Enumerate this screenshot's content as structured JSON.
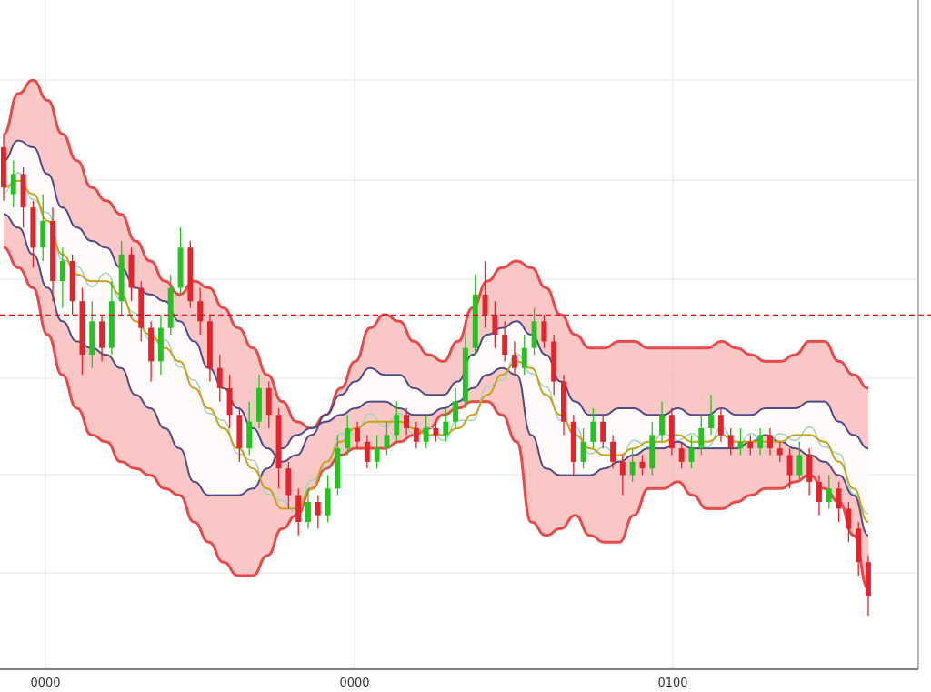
{
  "colors": {
    "background": "#ffffff",
    "grid": "#e4e4e4",
    "axis": "#555555",
    "up_candle": "#22c51e",
    "down_candle": "#e8222a",
    "band_outline": "#e84a4a",
    "band_fill": "#f8b4b4",
    "inner_band": "#4e4c86",
    "ma_line": "#c9a21a",
    "ma_line_light": "#9ed4c0",
    "reference_line": "#e01010"
  },
  "chart_data": {
    "type": "candlestick",
    "title": "",
    "xlabel": "",
    "ylabel": "",
    "x_tick_labels": [
      "0000",
      "0000",
      "0100"
    ],
    "ylim": [
      0,
      100
    ],
    "grid": true,
    "legend": "none",
    "reference_line": {
      "value": 52.9,
      "style": "dashed",
      "color": "#e01010"
    },
    "candles": [
      {
        "o": 78,
        "c": 72,
        "h": 80,
        "l": 70
      },
      {
        "o": 71,
        "c": 74,
        "h": 76,
        "l": 69
      },
      {
        "o": 74,
        "c": 69,
        "h": 75,
        "l": 66
      },
      {
        "o": 69,
        "c": 63,
        "h": 70,
        "l": 60
      },
      {
        "o": 63,
        "c": 67,
        "h": 71,
        "l": 61
      },
      {
        "o": 67,
        "c": 58,
        "h": 69,
        "l": 55
      },
      {
        "o": 58,
        "c": 61,
        "h": 63,
        "l": 54
      },
      {
        "o": 61,
        "c": 55,
        "h": 62,
        "l": 53
      },
      {
        "o": 55,
        "c": 47,
        "h": 57,
        "l": 44
      },
      {
        "o": 47,
        "c": 52,
        "h": 55,
        "l": 45
      },
      {
        "o": 52,
        "c": 48,
        "h": 53,
        "l": 46
      },
      {
        "o": 48,
        "c": 55,
        "h": 58,
        "l": 47
      },
      {
        "o": 55,
        "c": 62,
        "h": 64,
        "l": 53
      },
      {
        "o": 62,
        "c": 57,
        "h": 63,
        "l": 55
      },
      {
        "o": 57,
        "c": 51,
        "h": 58,
        "l": 49
      },
      {
        "o": 51,
        "c": 46,
        "h": 52,
        "l": 43
      },
      {
        "o": 46,
        "c": 51,
        "h": 53,
        "l": 44
      },
      {
        "o": 51,
        "c": 57,
        "h": 59,
        "l": 50
      },
      {
        "o": 57,
        "c": 63,
        "h": 66,
        "l": 56
      },
      {
        "o": 63,
        "c": 55,
        "h": 64,
        "l": 54
      },
      {
        "o": 55,
        "c": 52,
        "h": 57,
        "l": 50
      },
      {
        "o": 52,
        "c": 45,
        "h": 53,
        "l": 43
      },
      {
        "o": 45,
        "c": 42,
        "h": 47,
        "l": 40
      },
      {
        "o": 42,
        "c": 38,
        "h": 44,
        "l": 36
      },
      {
        "o": 38,
        "c": 33,
        "h": 39,
        "l": 31
      },
      {
        "o": 33,
        "c": 37,
        "h": 40,
        "l": 32
      },
      {
        "o": 37,
        "c": 42,
        "h": 44,
        "l": 36
      },
      {
        "o": 42,
        "c": 38,
        "h": 43,
        "l": 36
      },
      {
        "o": 38,
        "c": 30,
        "h": 39,
        "l": 27
      },
      {
        "o": 30,
        "c": 26,
        "h": 31,
        "l": 24
      },
      {
        "o": 26,
        "c": 22,
        "h": 27,
        "l": 20
      },
      {
        "o": 22,
        "c": 25,
        "h": 27,
        "l": 21
      },
      {
        "o": 25,
        "c": 23,
        "h": 26,
        "l": 21
      },
      {
        "o": 23,
        "c": 27,
        "h": 29,
        "l": 22
      },
      {
        "o": 27,
        "c": 33,
        "h": 35,
        "l": 26
      },
      {
        "o": 33,
        "c": 36,
        "h": 38,
        "l": 32
      },
      {
        "o": 36,
        "c": 34,
        "h": 37,
        "l": 33
      },
      {
        "o": 34,
        "c": 31,
        "h": 35,
        "l": 30
      },
      {
        "o": 31,
        "c": 33,
        "h": 35,
        "l": 30
      },
      {
        "o": 33,
        "c": 35,
        "h": 37,
        "l": 32
      },
      {
        "o": 35,
        "c": 38,
        "h": 40,
        "l": 34
      },
      {
        "o": 38,
        "c": 36,
        "h": 39,
        "l": 35
      },
      {
        "o": 36,
        "c": 34,
        "h": 37,
        "l": 33
      },
      {
        "o": 34,
        "c": 36,
        "h": 38,
        "l": 33
      },
      {
        "o": 36,
        "c": 35,
        "h": 37,
        "l": 34
      },
      {
        "o": 35,
        "c": 37,
        "h": 39,
        "l": 34
      },
      {
        "o": 37,
        "c": 40,
        "h": 42,
        "l": 36
      },
      {
        "o": 40,
        "c": 48,
        "h": 50,
        "l": 39
      },
      {
        "o": 48,
        "c": 56,
        "h": 59,
        "l": 47
      },
      {
        "o": 56,
        "c": 53,
        "h": 61,
        "l": 51
      },
      {
        "o": 53,
        "c": 50,
        "h": 55,
        "l": 48
      },
      {
        "o": 50,
        "c": 47,
        "h": 52,
        "l": 46
      },
      {
        "o": 47,
        "c": 45,
        "h": 49,
        "l": 44
      },
      {
        "o": 45,
        "c": 48,
        "h": 50,
        "l": 44
      },
      {
        "o": 48,
        "c": 52,
        "h": 54,
        "l": 47
      },
      {
        "o": 52,
        "c": 49,
        "h": 53,
        "l": 48
      },
      {
        "o": 49,
        "c": 43,
        "h": 50,
        "l": 41
      },
      {
        "o": 43,
        "c": 37,
        "h": 44,
        "l": 35
      },
      {
        "o": 37,
        "c": 31,
        "h": 38,
        "l": 29
      },
      {
        "o": 31,
        "c": 34,
        "h": 36,
        "l": 30
      },
      {
        "o": 34,
        "c": 37,
        "h": 39,
        "l": 33
      },
      {
        "o": 37,
        "c": 34,
        "h": 38,
        "l": 33
      },
      {
        "o": 34,
        "c": 31,
        "h": 35,
        "l": 30
      },
      {
        "o": 31,
        "c": 29,
        "h": 32,
        "l": 26
      },
      {
        "o": 29,
        "c": 31,
        "h": 33,
        "l": 28
      },
      {
        "o": 31,
        "c": 30,
        "h": 32,
        "l": 29
      },
      {
        "o": 30,
        "c": 35,
        "h": 37,
        "l": 29
      },
      {
        "o": 35,
        "c": 38,
        "h": 40,
        "l": 34
      },
      {
        "o": 38,
        "c": 33,
        "h": 39,
        "l": 32
      },
      {
        "o": 33,
        "c": 31,
        "h": 34,
        "l": 30
      },
      {
        "o": 31,
        "c": 33,
        "h": 35,
        "l": 30
      },
      {
        "o": 33,
        "c": 36,
        "h": 38,
        "l": 32
      },
      {
        "o": 36,
        "c": 38,
        "h": 41,
        "l": 35
      },
      {
        "o": 38,
        "c": 35,
        "h": 39,
        "l": 34
      },
      {
        "o": 35,
        "c": 33,
        "h": 36,
        "l": 32
      },
      {
        "o": 33,
        "c": 34,
        "h": 36,
        "l": 32
      },
      {
        "o": 34,
        "c": 33,
        "h": 35,
        "l": 32
      },
      {
        "o": 33,
        "c": 35,
        "h": 36,
        "l": 32
      },
      {
        "o": 35,
        "c": 33,
        "h": 36,
        "l": 32
      },
      {
        "o": 33,
        "c": 32,
        "h": 34,
        "l": 31
      },
      {
        "o": 32,
        "c": 29,
        "h": 33,
        "l": 27
      },
      {
        "o": 29,
        "c": 32,
        "h": 34,
        "l": 28
      },
      {
        "o": 32,
        "c": 28,
        "h": 33,
        "l": 26
      },
      {
        "o": 28,
        "c": 25,
        "h": 29,
        "l": 23
      },
      {
        "o": 25,
        "c": 27,
        "h": 29,
        "l": 24
      },
      {
        "o": 27,
        "c": 24,
        "h": 28,
        "l": 22
      },
      {
        "o": 24,
        "c": 21,
        "h": 25,
        "l": 19
      },
      {
        "o": 21,
        "c": 16,
        "h": 22,
        "l": 14
      },
      {
        "o": 16,
        "c": 11,
        "h": 17,
        "l": 8
      }
    ],
    "series": [
      {
        "role": "outer_band_upper",
        "values": [
          80,
          86,
          88,
          85,
          80,
          76,
          72,
          70,
          68,
          64,
          61,
          58,
          56,
          58,
          57,
          54,
          51,
          48,
          44,
          40,
          37,
          36,
          38,
          42,
          46,
          51,
          53,
          52,
          49,
          47,
          46,
          49,
          54,
          58,
          60,
          61,
          60,
          57,
          53,
          50,
          48,
          48,
          49,
          49,
          48,
          48,
          48,
          48,
          48,
          49,
          48,
          47,
          46,
          46,
          47,
          49,
          49,
          46,
          44,
          42
        ]
      },
      {
        "role": "outer_band_lower",
        "values": [
          63,
          60,
          57,
          50,
          44,
          39,
          35,
          34,
          31,
          30,
          29,
          27,
          26,
          22,
          19,
          16,
          14,
          14,
          17,
          21,
          23,
          27,
          30,
          32,
          33,
          33,
          33,
          34,
          35,
          36,
          38,
          39,
          40,
          40,
          38,
          34,
          22,
          20,
          21,
          23,
          20,
          19,
          19,
          23,
          27,
          27,
          28,
          26,
          24,
          24,
          25,
          26,
          27,
          27,
          28,
          29,
          27,
          25,
          20,
          12
        ]
      },
      {
        "role": "inner_band_upper",
        "values": [
          76,
          79,
          78,
          74,
          69,
          66,
          64,
          63,
          60,
          57,
          56,
          55,
          52,
          49,
          45,
          42,
          39,
          36,
          33,
          31,
          32,
          35,
          38,
          41,
          43,
          45,
          44,
          44,
          42,
          41,
          41,
          43,
          47,
          50,
          51,
          52,
          50,
          47,
          43,
          40,
          38,
          38,
          39,
          39,
          38,
          38,
          39,
          38,
          38,
          39,
          38,
          38,
          39,
          39,
          39,
          40,
          40,
          37,
          35,
          33
        ]
      },
      {
        "role": "inner_band_lower",
        "values": [
          68,
          66,
          62,
          57,
          52,
          49,
          48,
          47,
          45,
          41,
          39,
          36,
          33,
          28,
          26,
          26,
          26,
          27,
          30,
          33,
          35,
          36,
          37,
          38,
          39,
          40,
          40,
          39,
          38,
          38,
          39,
          40,
          42,
          44,
          45,
          44,
          35,
          30,
          29,
          29,
          29,
          30,
          31,
          32,
          33,
          33,
          34,
          33,
          33,
          33,
          33,
          34,
          35,
          34,
          33,
          32,
          31,
          29,
          26,
          20
        ]
      },
      {
        "role": "moving_average",
        "values": [
          72,
          73,
          71,
          67,
          62,
          59,
          58,
          58,
          56,
          52,
          50,
          48,
          46,
          42,
          39,
          36,
          33,
          30,
          27,
          24,
          24,
          27,
          31,
          34,
          36,
          37,
          37,
          37,
          36,
          35,
          35,
          36,
          38,
          41,
          44,
          46,
          45,
          41,
          38,
          35,
          33,
          32,
          32,
          33,
          34,
          34,
          35,
          34,
          34,
          35,
          34,
          34,
          34,
          34,
          35,
          35,
          34,
          31,
          27,
          22
        ]
      }
    ]
  }
}
